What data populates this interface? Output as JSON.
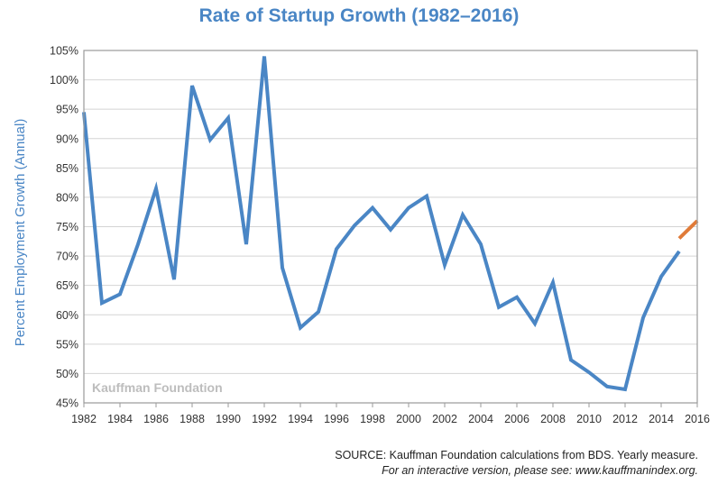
{
  "chart_data": {
    "type": "line",
    "title": "Rate of Startup Growth (1982–2016)",
    "ylabel": "Percent Employment Growth (Annual)",
    "xlabel": "",
    "watermark": "Kauffman Foundation",
    "source": "SOURCE: Kauffman Foundation calculations from BDS. Yearly measure.",
    "note": "For an interactive version, please see: www.kauffmanindex.org.",
    "xlim": [
      1982,
      2016
    ],
    "ylim": [
      45,
      105
    ],
    "x_ticks": [
      1982,
      1984,
      1986,
      1988,
      1990,
      1992,
      1994,
      1996,
      1998,
      2000,
      2002,
      2004,
      2006,
      2008,
      2010,
      2012,
      2014,
      2016
    ],
    "y_ticks": [
      45,
      50,
      55,
      60,
      65,
      70,
      75,
      80,
      85,
      90,
      95,
      100,
      105
    ],
    "y_tick_labels": [
      "45%",
      "50%",
      "55%",
      "60%",
      "65%",
      "70%",
      "75%",
      "80%",
      "85%",
      "90%",
      "95%",
      "100%",
      "105%"
    ],
    "grid": true,
    "series": [
      {
        "color": "#4a86c5",
        "x": [
          1982,
          1983,
          1984,
          1985,
          1986,
          1987,
          1988,
          1989,
          1990,
          1991,
          1992,
          1993,
          1994,
          1995,
          1996,
          1997,
          1998,
          1999,
          2000,
          2001,
          2002,
          2003,
          2004,
          2005,
          2006,
          2007,
          2008,
          2009,
          2010,
          2011,
          2012,
          2013,
          2014,
          2015
        ],
        "y": [
          94.5,
          62,
          63.5,
          72,
          81.5,
          66,
          99,
          89.8,
          93.5,
          72,
          104,
          68,
          57.8,
          60.5,
          71.2,
          75.2,
          78.2,
          74.5,
          78.2,
          80.2,
          68.5,
          77,
          72,
          61.3,
          63,
          58.5,
          65.5,
          52.3,
          50.2,
          47.8,
          47.3,
          59.5,
          66.5,
          70.8
        ]
      },
      {
        "color": "#e07b39",
        "x": [
          2015,
          2016
        ],
        "y": [
          73,
          76
        ]
      }
    ]
  }
}
